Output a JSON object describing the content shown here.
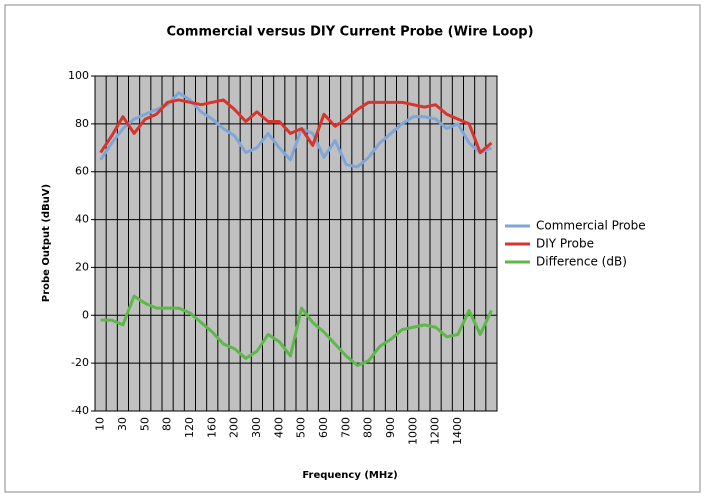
{
  "chart_data": {
    "type": "line",
    "title": "Commercial versus DIY Current Probe (Wire Loop)",
    "x_label": "Frequency (MHz)",
    "y_label": "Probe Output (dBuV)",
    "categories": [
      10,
      null,
      30,
      null,
      50,
      null,
      80,
      null,
      120,
      null,
      160,
      null,
      200,
      null,
      300,
      null,
      400,
      null,
      500,
      null,
      600,
      null,
      700,
      null,
      800,
      null,
      900,
      null,
      1000,
      null,
      1200,
      null,
      1400,
      null,
      null,
      null
    ],
    "series": [
      {
        "name": "Commercial Probe",
        "color": "#7ea6d8",
        "values": [
          65,
          72,
          78,
          82,
          84,
          86,
          88,
          93,
          90,
          85,
          82,
          78,
          75,
          68,
          70,
          76,
          70,
          65,
          78,
          76,
          66,
          73,
          63,
          62,
          66,
          72,
          76,
          80,
          83,
          83,
          82,
          78,
          80,
          72,
          68,
          70
        ]
      },
      {
        "name": "DIY Probe",
        "color": "#d9342b",
        "values": [
          68,
          75,
          83,
          76,
          82,
          84,
          89,
          90,
          89,
          88,
          89,
          90,
          86,
          81,
          85,
          81,
          81,
          76,
          78,
          71,
          84,
          79,
          82,
          86,
          89,
          89,
          89,
          89,
          88,
          87,
          88,
          84,
          82,
          80,
          68,
          72
        ]
      },
      {
        "name": "Difference (dB)",
        "color": "#5cb947",
        "values": [
          -2,
          -2,
          -4,
          8,
          5,
          3,
          3,
          3,
          1,
          -3,
          -7,
          -12,
          -14,
          -18,
          -15,
          -8,
          -11,
          -17,
          3,
          -3,
          -7,
          -12,
          -17,
          -21,
          -19,
          -13,
          -10,
          -6,
          -5,
          -4,
          -5,
          -9,
          -8,
          2,
          -8,
          2
        ]
      }
    ],
    "ylim": [
      -40,
      100
    ],
    "yticks": [
      -40,
      -20,
      0,
      20,
      40,
      60,
      80,
      100
    ],
    "grid": true,
    "legend": "right"
  }
}
